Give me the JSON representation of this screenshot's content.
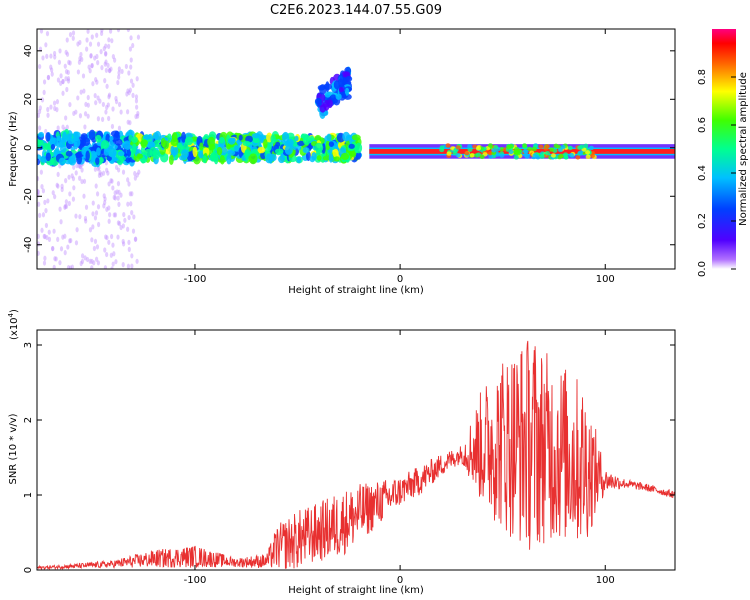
{
  "title": "C2E6.2023.144.07.55.G09",
  "colors": {
    "snr_line": "#e83030",
    "axes": "#000000",
    "background": "#ffffff"
  },
  "colorbar": {
    "label": "Normalized spectral amplitude",
    "ticks": [
      "0.0",
      "0.2",
      "0.4",
      "0.6",
      "0.8"
    ],
    "range": [
      0,
      1
    ]
  },
  "chart_data": [
    {
      "type": "heatmap",
      "title": "C2E6.2023.144.07.55.G09",
      "xlabel": "Height of straight line (km)",
      "ylabel": "Frequency (Hz)",
      "xlim": [
        -177,
        134
      ],
      "ylim": [
        -50,
        49
      ],
      "x_ticks": [
        -100,
        0,
        100
      ],
      "x_tick_labels": [
        "-100",
        "0",
        "100"
      ],
      "y_ticks": [
        -40,
        -20,
        0,
        20,
        40
      ],
      "y_tick_labels": [
        "-40",
        "-20",
        "0",
        "20",
        "40"
      ],
      "colormap": "spectral (violet-blue-cyan-green-yellow-red-magenta)",
      "features": [
        {
          "x_range": [
            -177,
            -130
          ],
          "freq_center": 0,
          "freq_halfwidth": 6,
          "amplitude": 0.35
        },
        {
          "x_range": [
            -130,
            -20
          ],
          "freq_center": 0,
          "freq_halfwidth": 5,
          "amplitude": 0.5
        },
        {
          "x_range": [
            -40,
            -25
          ],
          "freq_center": 18,
          "freq_halfwidth": 6,
          "amplitude": 0.25
        },
        {
          "x_range": [
            -15,
            134
          ],
          "freq_center": -1.5,
          "freq_halfwidth": 1,
          "amplitude": 0.9
        }
      ],
      "grid": false
    },
    {
      "type": "line",
      "xlabel": "Height of straight line (km)",
      "ylabel": "SNR (10 * v/v)",
      "y_multiplier_label": "(x10",
      "y_multiplier_exp": "4",
      "y_multiplier_close": ")",
      "xlim": [
        -177,
        134
      ],
      "ylim": [
        0,
        3.2
      ],
      "x_ticks": [
        -100,
        0,
        100
      ],
      "x_tick_labels": [
        "-100",
        "0",
        "100"
      ],
      "y_ticks": [
        0,
        1,
        2,
        3
      ],
      "y_tick_labels": [
        "0",
        "1",
        "2",
        "3"
      ],
      "series": [
        {
          "color": "#e83030",
          "envelope_x": [
            -177,
            -160,
            -140,
            -120,
            -100,
            -80,
            -65,
            -60,
            -50,
            -40,
            -30,
            -20,
            -10,
            0,
            10,
            20,
            30,
            40,
            50,
            60,
            65,
            70,
            80,
            90,
            100,
            110,
            120,
            134
          ],
          "envelope_mean": [
            0.03,
            0.05,
            0.08,
            0.15,
            0.18,
            0.1,
            0.12,
            0.3,
            0.4,
            0.5,
            0.6,
            0.75,
            0.9,
            1.05,
            1.2,
            1.4,
            1.55,
            1.65,
            1.7,
            1.7,
            1.7,
            1.65,
            1.55,
            1.4,
            1.2,
            1.15,
            1.1,
            1.0
          ],
          "envelope_spread": [
            0.02,
            0.03,
            0.05,
            0.12,
            0.15,
            0.06,
            0.1,
            0.3,
            0.4,
            0.4,
            0.45,
            0.4,
            0.3,
            0.2,
            0.2,
            0.15,
            0.12,
            0.8,
            1.2,
            1.4,
            1.5,
            1.3,
            1.2,
            1.1,
            0.15,
            0.06,
            0.05,
            0.05
          ]
        }
      ]
    }
  ]
}
